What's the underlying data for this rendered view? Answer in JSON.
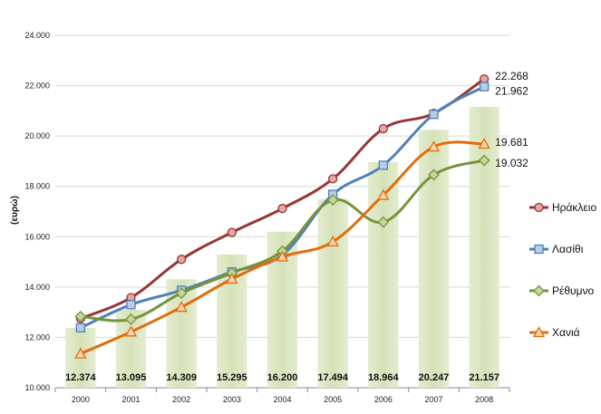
{
  "chart_data": {
    "type": "line",
    "title": "",
    "xlabel": "",
    "ylabel": "(ευρώ)",
    "ylim": [
      10000,
      24000
    ],
    "yticks": [
      "10.000",
      "12.000",
      "14.000",
      "16.000",
      "18.000",
      "20.000",
      "22.000",
      "24.000"
    ],
    "grid": true,
    "legend_position": "right",
    "categories": [
      "2000",
      "2001",
      "2002",
      "2003",
      "2004",
      "2005",
      "2006",
      "2007",
      "2008"
    ],
    "bars": {
      "values": [
        12374,
        13095,
        14309,
        15295,
        16200,
        17494,
        18964,
        20247,
        21157
      ],
      "labels": [
        "12.374",
        "13.095",
        "14.309",
        "15.295",
        "16.200",
        "17.494",
        "18.964",
        "20.247",
        "21.157"
      ],
      "color": "#d7e4bd"
    },
    "series": [
      {
        "name": "Ηράκλειο",
        "color": "#953735",
        "marker": "circle",
        "marker_fill": "#e6a6a4",
        "values": [
          12750,
          13580,
          15100,
          16170,
          17120,
          18300,
          20290,
          20900,
          22268
        ],
        "end_label": "22.268"
      },
      {
        "name": "Λασίθι",
        "color": "#4f81bd",
        "marker": "square",
        "marker_fill": "#b9cde5",
        "values": [
          12380,
          13300,
          13870,
          14600,
          15280,
          17680,
          18840,
          20860,
          21962
        ],
        "end_label": "21.962"
      },
      {
        "name": "Ρέθυμνο",
        "color": "#77933c",
        "marker": "diamond",
        "marker_fill": "#c3d69b",
        "values": [
          12830,
          12720,
          13760,
          14560,
          15430,
          17460,
          16580,
          18460,
          19032
        ],
        "end_label": "19.032"
      },
      {
        "name": "Χανιά",
        "color": "#e46c0a",
        "marker": "triangle",
        "marker_fill": "#fcd5b5",
        "values": [
          11350,
          12220,
          13200,
          14320,
          15200,
          15800,
          17650,
          19570,
          19681
        ],
        "end_label": "19.681"
      }
    ]
  }
}
